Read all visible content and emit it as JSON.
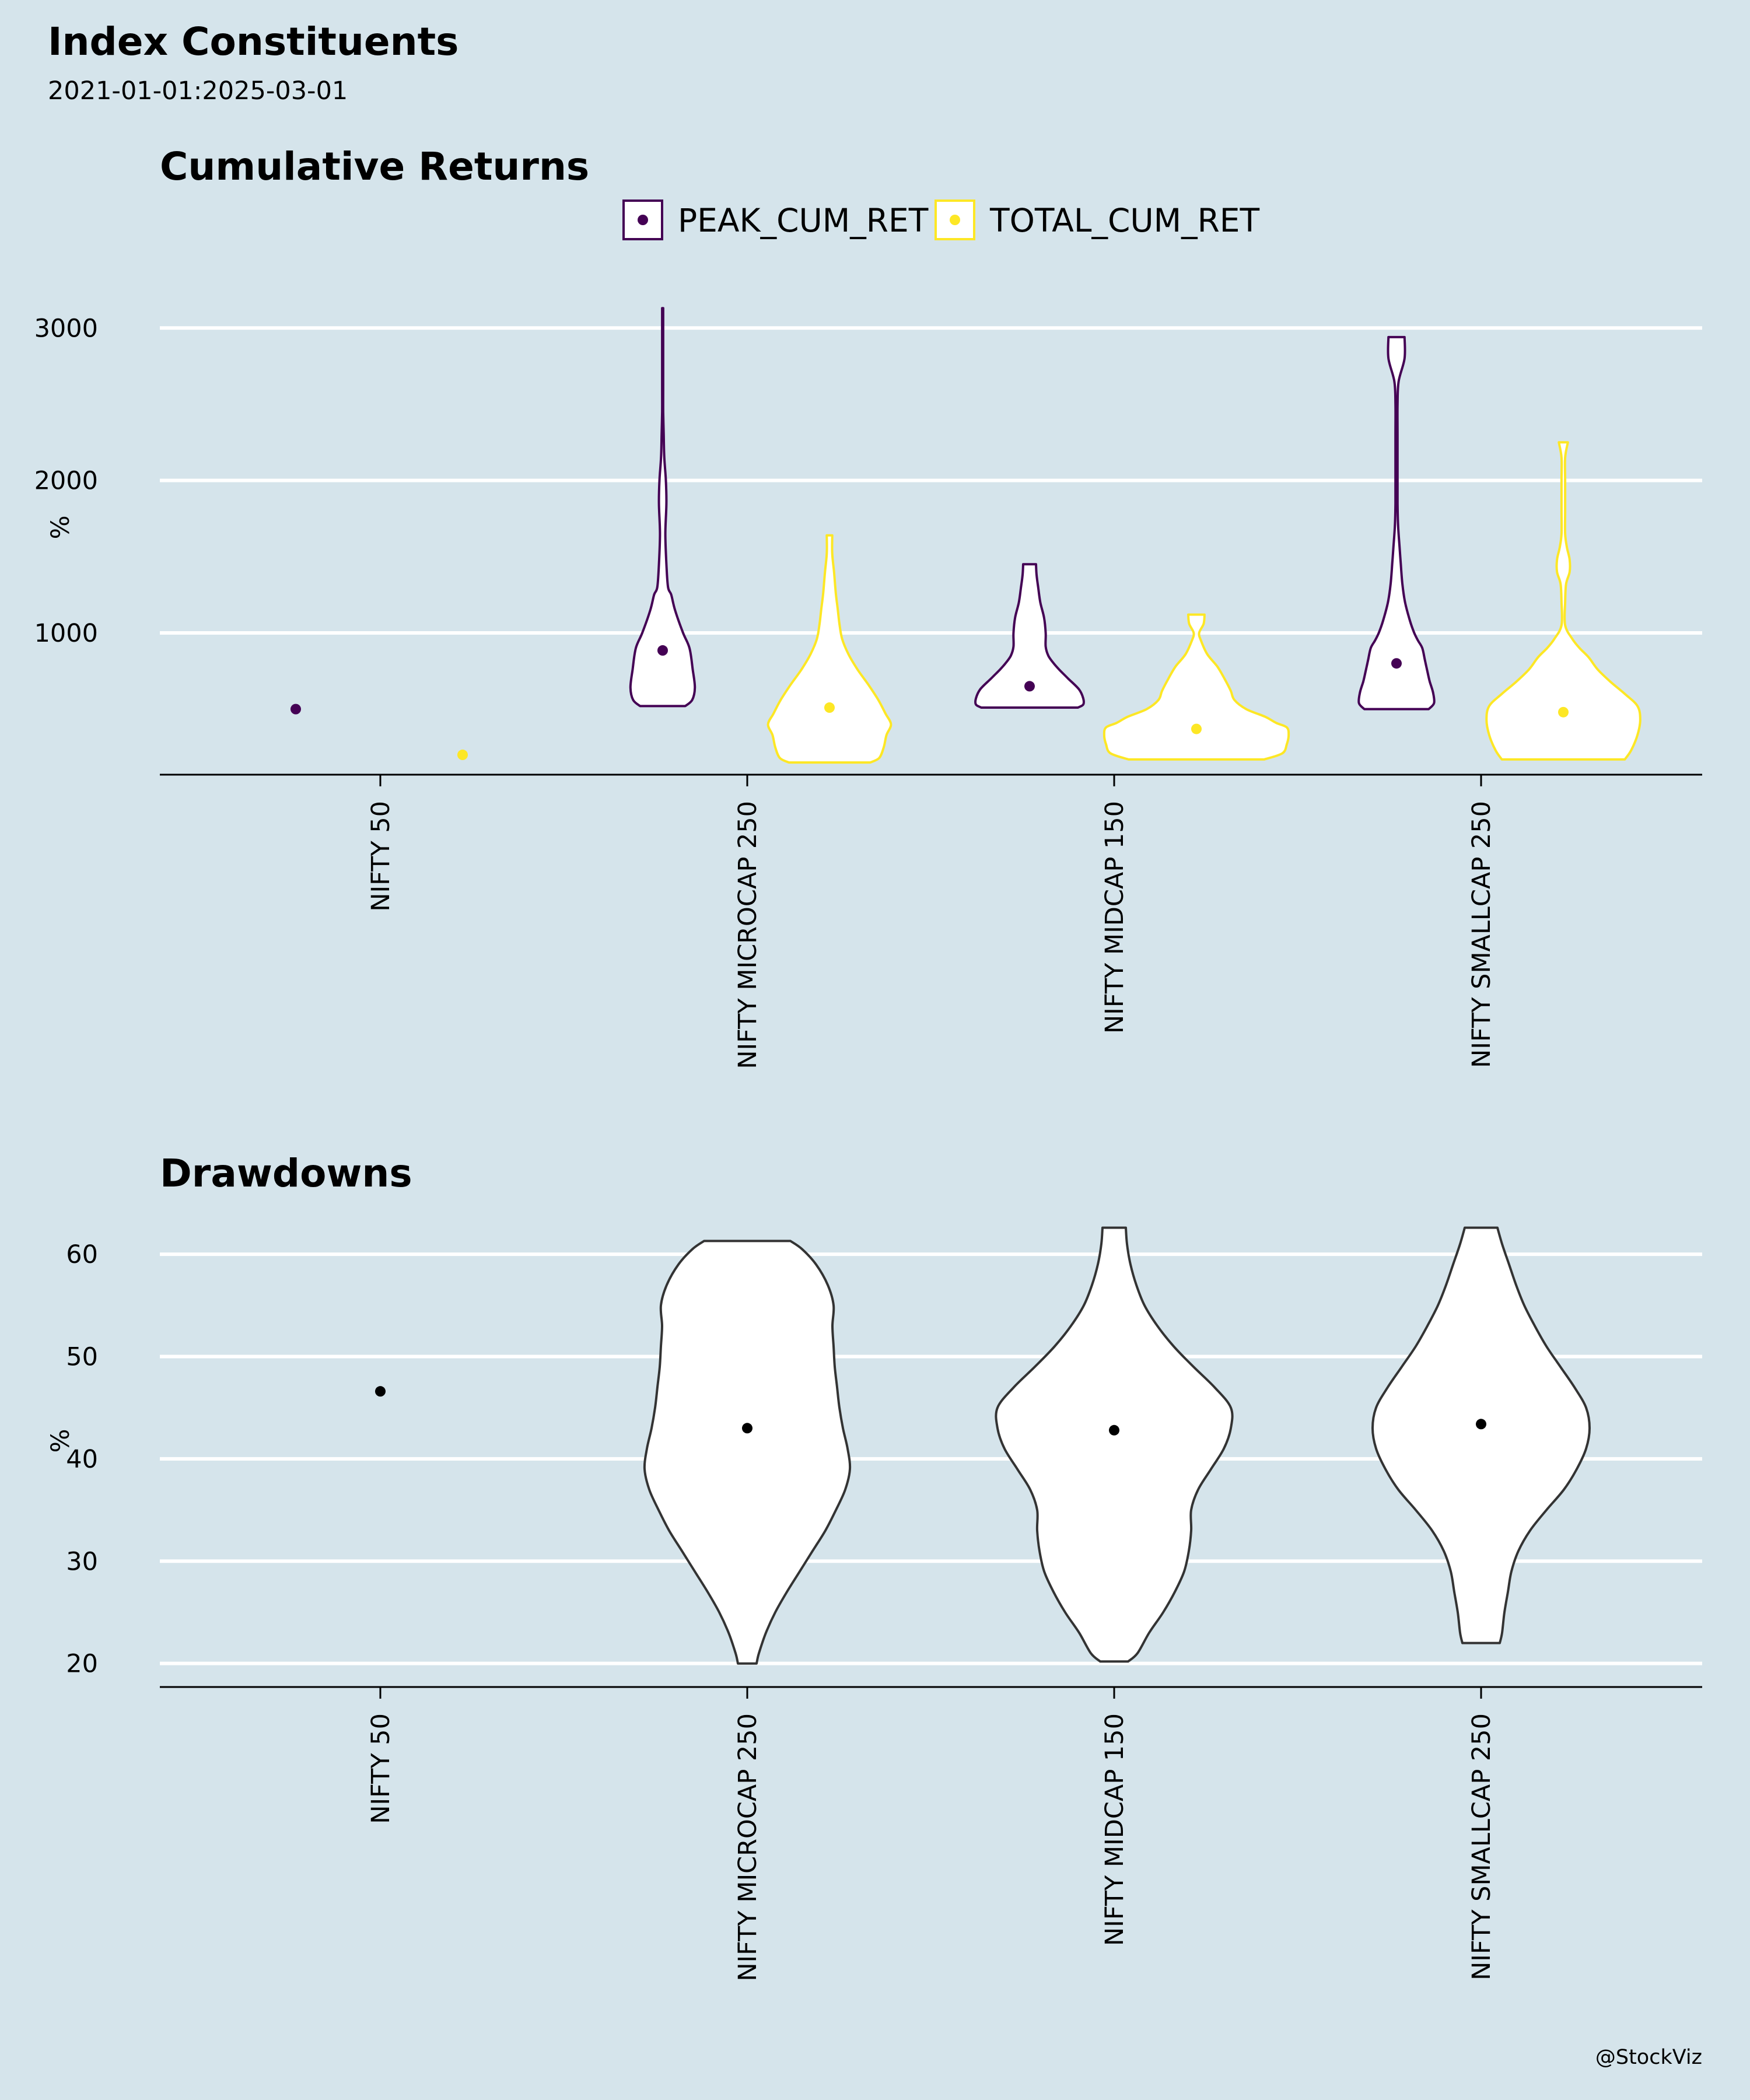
{
  "header": {
    "title": "Index Constituents",
    "subtitle": "2021-01-01:2025-03-01"
  },
  "caption": "@StockViz",
  "colors": {
    "background": "#d5e4eb",
    "gridline": "#ffffff",
    "peak": "#440154",
    "total": "#fde725",
    "drawdown_outline": "#333333",
    "drawdown_point": "#000000"
  },
  "chart_data": [
    {
      "type": "violin",
      "title": "Cumulative Returns",
      "ylabel": "%",
      "ylim": [
        70,
        3200
      ],
      "yticks": [
        1000,
        2000,
        3000
      ],
      "grid": true,
      "legend_position": "top",
      "categories": [
        "NIFTY 50",
        "NIFTY MICROCAP 250",
        "NIFTY MIDCAP 150",
        "NIFTY SMALLCAP 250"
      ],
      "series": [
        {
          "name": "PEAK_CUM_RET",
          "color": "#440154",
          "medians": [
            500,
            885,
            650,
            800
          ],
          "distributions": [
            {
              "single_value": 500
            },
            {
              "profile": [
                [
                  520,
                  0.42
                ],
                [
                  560,
                  0.55
                ],
                [
                  640,
                  0.6
                ],
                [
                  760,
                  0.56
                ],
                [
                  900,
                  0.5
                ],
                [
                  1000,
                  0.38
                ],
                [
                  1150,
                  0.23
                ],
                [
                  1250,
                  0.16
                ],
                [
                  1300,
                  0.1
                ],
                [
                  1450,
                  0.07
                ],
                [
                  1650,
                  0.05
                ],
                [
                  1850,
                  0.07
                ],
                [
                  2000,
                  0.06
                ],
                [
                  2150,
                  0.03
                ],
                [
                  2300,
                  0.02
                ],
                [
                  2450,
                  0.01
                ],
                [
                  2600,
                  0.01
                ],
                [
                  2800,
                  0.01
                ],
                [
                  3000,
                  0.01
                ],
                [
                  3130,
                  0.01
                ]
              ]
            },
            {
              "profile": [
                [
                  510,
                  0.9
                ],
                [
                  530,
                  1.0
                ],
                [
                  570,
                  1.0
                ],
                [
                  630,
                  0.92
                ],
                [
                  700,
                  0.72
                ],
                [
                  760,
                  0.55
                ],
                [
                  800,
                  0.45
                ],
                [
                  850,
                  0.35
                ],
                [
                  910,
                  0.3
                ],
                [
                  1000,
                  0.3
                ],
                [
                  1100,
                  0.27
                ],
                [
                  1200,
                  0.2
                ],
                [
                  1300,
                  0.16
                ],
                [
                  1380,
                  0.13
                ],
                [
                  1450,
                  0.12
                ]
              ]
            },
            {
              "profile": [
                [
                  500,
                  0.6
                ],
                [
                  540,
                  0.7
                ],
                [
                  610,
                  0.68
                ],
                [
                  680,
                  0.62
                ],
                [
                  740,
                  0.58
                ],
                [
                  820,
                  0.53
                ],
                [
                  900,
                  0.48
                ],
                [
                  950,
                  0.4
                ],
                [
                  1000,
                  0.33
                ],
                [
                  1080,
                  0.25
                ],
                [
                  1200,
                  0.16
                ],
                [
                  1320,
                  0.11
                ],
                [
                  1450,
                  0.08
                ],
                [
                  1550,
                  0.06
                ],
                [
                  1700,
                  0.03
                ],
                [
                  1850,
                  0.02
                ],
                [
                  2050,
                  0.02
                ],
                [
                  2300,
                  0.02
                ],
                [
                  2500,
                  0.02
                ],
                [
                  2650,
                  0.04
                ],
                [
                  2800,
                  0.15
                ],
                [
                  2940,
                  0.15
                ]
              ]
            }
          ]
        },
        {
          "name": "TOTAL_CUM_RET",
          "color": "#fde725",
          "medians": [
            200,
            510,
            370,
            480
          ],
          "distributions": [
            {
              "single_value": 200
            },
            {
              "profile": [
                [
                  150,
                  0.45
                ],
                [
                  180,
                  0.55
                ],
                [
                  250,
                  0.6
                ],
                [
                  330,
                  0.63
                ],
                [
                  400,
                  0.68
                ],
                [
                  470,
                  0.62
                ],
                [
                  560,
                  0.54
                ],
                [
                  660,
                  0.43
                ],
                [
                  760,
                  0.31
                ],
                [
                  860,
                  0.21
                ],
                [
                  960,
                  0.14
                ],
                [
                  1060,
                  0.11
                ],
                [
                  1160,
                  0.09
                ],
                [
                  1260,
                  0.07
                ],
                [
                  1400,
                  0.05
                ],
                [
                  1520,
                  0.03
                ],
                [
                  1640,
                  0.03
                ]
              ]
            },
            {
              "profile": [
                [
                  170,
                  0.75
                ],
                [
                  210,
                  0.95
                ],
                [
                  270,
                  1.0
                ],
                [
                  330,
                  1.02
                ],
                [
                  380,
                  1.0
                ],
                [
                  410,
                  0.88
                ],
                [
                  450,
                  0.76
                ],
                [
                  500,
                  0.55
                ],
                [
                  560,
                  0.42
                ],
                [
                  620,
                  0.38
                ],
                [
                  700,
                  0.31
                ],
                [
                  780,
                  0.23
                ],
                [
                  860,
                  0.12
                ],
                [
                  950,
                  0.05
                ],
                [
                  1000,
                  0.03
                ],
                [
                  1060,
                  0.08
                ],
                [
                  1120,
                  0.09
                ]
              ]
            },
            {
              "profile": [
                [
                  170,
                  0.68
                ],
                [
                  230,
                  0.75
                ],
                [
                  330,
                  0.82
                ],
                [
                  430,
                  0.85
                ],
                [
                  520,
                  0.82
                ],
                [
                  600,
                  0.68
                ],
                [
                  680,
                  0.52
                ],
                [
                  760,
                  0.38
                ],
                [
                  840,
                  0.28
                ],
                [
                  900,
                  0.18
                ],
                [
                  960,
                  0.1
                ],
                [
                  1050,
                  0.02
                ],
                [
                  1200,
                  0.02
                ],
                [
                  1320,
                  0.03
                ],
                [
                  1400,
                  0.07
                ],
                [
                  1480,
                  0.07
                ],
                [
                  1560,
                  0.04
                ],
                [
                  1650,
                  0.02
                ],
                [
                  1800,
                  0.02
                ],
                [
                  2000,
                  0.02
                ],
                [
                  2150,
                  0.02
                ],
                [
                  2250,
                  0.05
                ]
              ]
            }
          ]
        }
      ]
    },
    {
      "type": "violin",
      "title": "Drawdowns",
      "ylabel": "%",
      "ylim": [
        17.7,
        64
      ],
      "yticks": [
        20,
        30,
        40,
        50,
        60
      ],
      "grid": true,
      "categories": [
        "NIFTY 50",
        "NIFTY MICROCAP 250",
        "NIFTY MIDCAP 150",
        "NIFTY SMALLCAP 250"
      ],
      "series": [
        {
          "name": "",
          "color": "#ffffff",
          "medians": [
            46.6,
            43,
            42.8,
            43.4
          ],
          "distributions": [
            {
              "single_value": 46.6
            },
            {
              "profile": [
                [
                  20,
                  0.08
                ],
                [
                  21,
                  0.1
                ],
                [
                  23,
                  0.16
                ],
                [
                  25,
                  0.24
                ],
                [
                  27,
                  0.34
                ],
                [
                  29,
                  0.45
                ],
                [
                  31,
                  0.56
                ],
                [
                  33,
                  0.67
                ],
                [
                  35,
                  0.76
                ],
                [
                  37,
                  0.84
                ],
                [
                  39,
                  0.88
                ],
                [
                  41,
                  0.86
                ],
                [
                  43,
                  0.82
                ],
                [
                  45,
                  0.79
                ],
                [
                  47,
                  0.77
                ],
                [
                  49,
                  0.75
                ],
                [
                  51,
                  0.74
                ],
                [
                  53,
                  0.73
                ],
                [
                  55,
                  0.74
                ],
                [
                  57,
                  0.69
                ],
                [
                  59,
                  0.59
                ],
                [
                  60.5,
                  0.47
                ],
                [
                  61.3,
                  0.37
                ]
              ]
            },
            {
              "profile": [
                [
                  20.2,
                  0.12
                ],
                [
                  21,
                  0.2
                ],
                [
                  23,
                  0.3
                ],
                [
                  25,
                  0.42
                ],
                [
                  27,
                  0.52
                ],
                [
                  29,
                  0.6
                ],
                [
                  31,
                  0.64
                ],
                [
                  33,
                  0.66
                ],
                [
                  35,
                  0.66
                ],
                [
                  37,
                  0.72
                ],
                [
                  39,
                  0.83
                ],
                [
                  41,
                  0.94
                ],
                [
                  43,
                  1.0
                ],
                [
                  45,
                  1.0
                ],
                [
                  47,
                  0.86
                ],
                [
                  49,
                  0.68
                ],
                [
                  51,
                  0.51
                ],
                [
                  53,
                  0.37
                ],
                [
                  55,
                  0.26
                ],
                [
                  57,
                  0.19
                ],
                [
                  59,
                  0.14
                ],
                [
                  61,
                  0.11
                ],
                [
                  62.6,
                  0.1
                ]
              ]
            },
            {
              "profile": [
                [
                  22,
                  0.16
                ],
                [
                  23,
                  0.18
                ],
                [
                  25,
                  0.2
                ],
                [
                  27,
                  0.23
                ],
                [
                  29,
                  0.26
                ],
                [
                  31,
                  0.32
                ],
                [
                  33,
                  0.42
                ],
                [
                  35,
                  0.56
                ],
                [
                  37,
                  0.71
                ],
                [
                  39,
                  0.82
                ],
                [
                  41,
                  0.9
                ],
                [
                  43,
                  0.93
                ],
                [
                  45,
                  0.9
                ],
                [
                  47,
                  0.8
                ],
                [
                  49,
                  0.68
                ],
                [
                  51,
                  0.56
                ],
                [
                  53,
                  0.46
                ],
                [
                  55,
                  0.37
                ],
                [
                  57,
                  0.3
                ],
                [
                  59,
                  0.24
                ],
                [
                  61,
                  0.18
                ],
                [
                  62.6,
                  0.14
                ]
              ]
            }
          ]
        }
      ]
    }
  ]
}
